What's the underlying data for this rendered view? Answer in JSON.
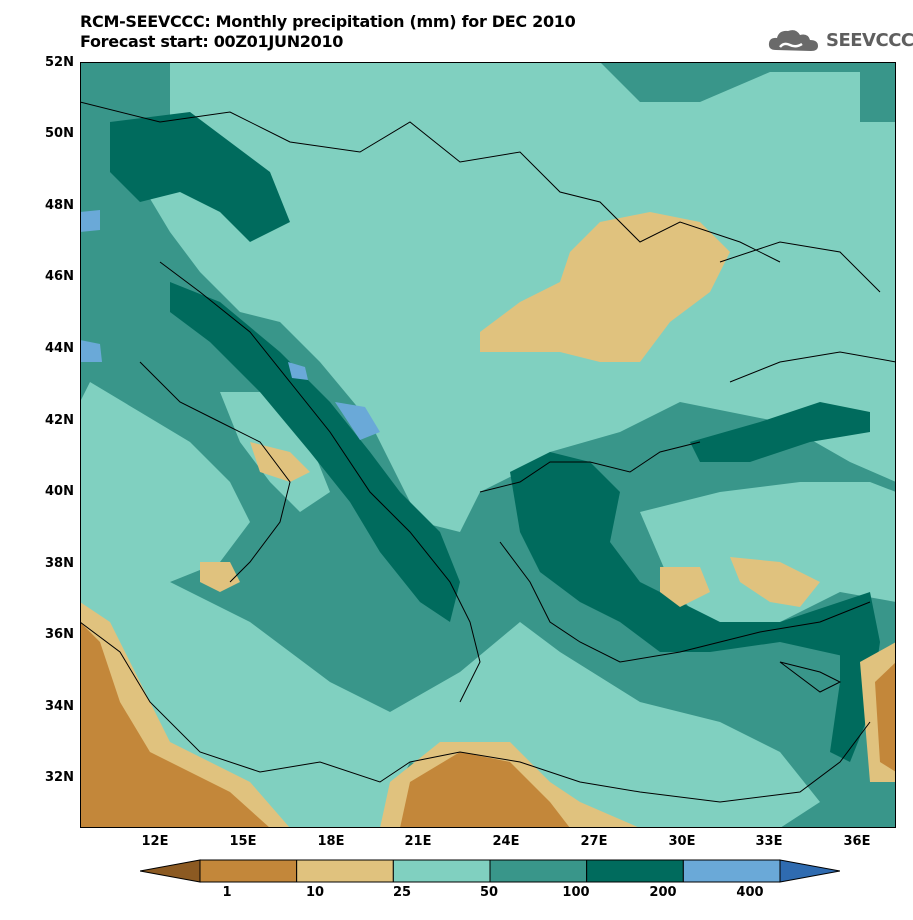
{
  "title": {
    "line1": "RCM-SEEVCCC: Monthly precipitation (mm) for DEC 2010",
    "line2": "Forecast start: 00Z01JUN2010"
  },
  "logo": {
    "text": "SEEVCCC",
    "icon": "cloud-icon"
  },
  "map": {
    "lat_labels": [
      "52N",
      "50N",
      "48N",
      "46N",
      "44N",
      "42N",
      "40N",
      "38N",
      "36N",
      "34N",
      "32N"
    ],
    "lon_labels": [
      "12E",
      "15E",
      "18E",
      "21E",
      "24E",
      "27E",
      "30E",
      "33E",
      "36E"
    ]
  },
  "colorbar": {
    "labels": [
      "1",
      "10",
      "25",
      "50",
      "100",
      "200",
      "400"
    ],
    "colors": [
      "#8c5a22",
      "#c3873a",
      "#e0c27e",
      "#80d0c0",
      "#39968a",
      "#006b5d",
      "#6aa9d8",
      "#2f6bb0"
    ]
  }
}
